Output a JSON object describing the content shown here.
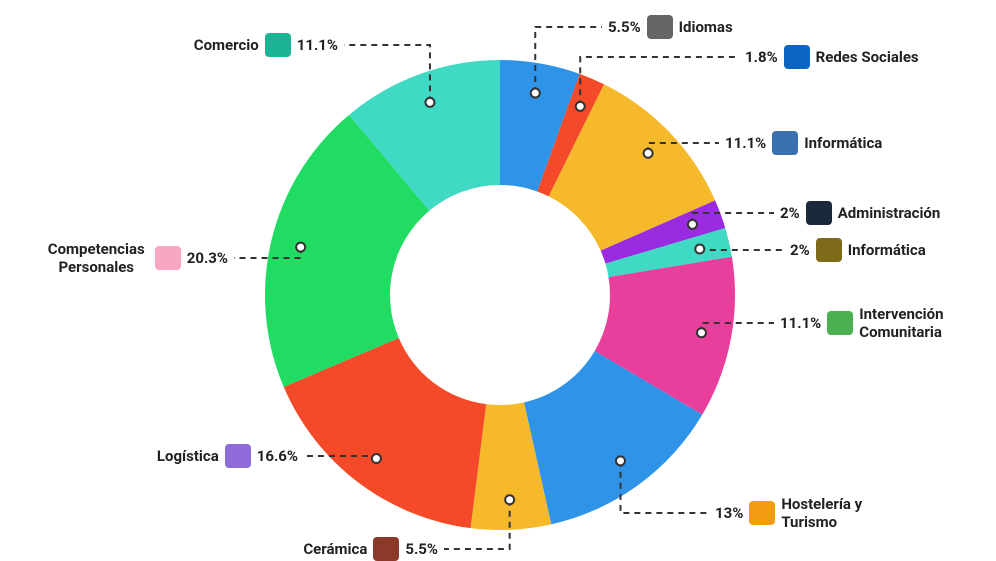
{
  "chart_data": {
    "type": "pie",
    "categories": [
      "Idiomas",
      "Redes Sociales",
      "Informática",
      "Administración",
      "Informática",
      "Intervención Comunitaria",
      "Hostelería y Turismo",
      "Cerámica",
      "Logística",
      "Competencias Personales",
      "Comercio"
    ],
    "values": [
      5.5,
      1.8,
      11.1,
      2,
      2,
      11.1,
      13,
      5.5,
      16.6,
      20.3,
      11.1
    ],
    "value_labels": [
      "5.5%",
      "1.8%",
      "11.1%",
      "2%",
      "2%",
      "11.1%",
      "13%",
      "5.5%",
      "16.6%",
      "20.3%",
      "11.1%"
    ],
    "colors": [
      "#2f93e8",
      "#f44a2a",
      "#f6b92b",
      "#9b2be0",
      "#3fd9c4",
      "#e83e9c",
      "#2f93e8",
      "#f6b92b",
      "#f44a2a",
      "#20dc62",
      "#3fd9c4"
    ]
  }
}
